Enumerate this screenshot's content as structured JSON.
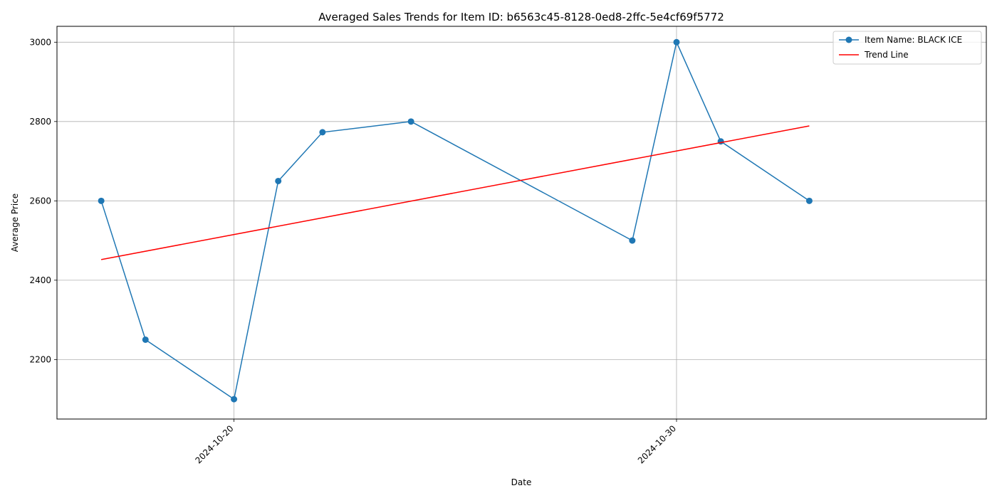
{
  "chart_data": {
    "type": "line",
    "title": "Averaged Sales Trends for Item ID: b6563c45-8128-0ed8-2ffc-5e4cf69f5772",
    "xlabel": "Date",
    "ylabel": "Average Price",
    "grid": true,
    "legend_position": "top-right",
    "x_ticks": [
      "2024-10-20",
      "2024-10-30"
    ],
    "y_ticks": [
      2200,
      2400,
      2600,
      2800,
      3000
    ],
    "xlim": [
      "2024-10-16",
      "2024-11-06"
    ],
    "ylim": [
      2050,
      3040
    ],
    "series": [
      {
        "name": "Item Name: BLACK ICE",
        "color": "#1f77b4",
        "marker": "circle",
        "x": [
          "2024-10-17",
          "2024-10-18",
          "2024-10-20",
          "2024-10-21",
          "2024-10-22",
          "2024-10-24",
          "2024-10-29",
          "2024-10-30",
          "2024-10-31",
          "2024-11-02"
        ],
        "y": [
          2600,
          2250,
          2100,
          2650,
          2773,
          2800,
          2500,
          3000,
          2750,
          2600
        ]
      },
      {
        "name": "Trend Line",
        "color": "#ff0000",
        "marker": "none",
        "x": [
          "2024-10-17",
          "2024-11-02"
        ],
        "y": [
          2452,
          2789
        ]
      }
    ]
  }
}
